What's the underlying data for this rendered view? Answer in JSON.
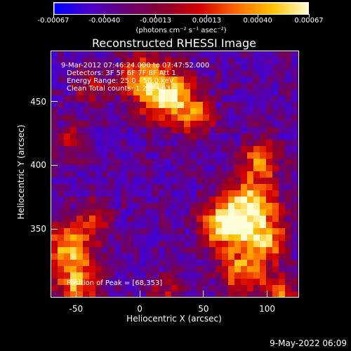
{
  "colorbar": {
    "tick_labels": [
      "-0.00067",
      "-0.00040",
      "-0.00013",
      "0.00013",
      "0.00040",
      "0.00067"
    ],
    "units": "(photons cm⁻² s⁻¹ asec⁻²)",
    "colors": [
      "#0000ff",
      "#4b00c8",
      "#6a0070",
      "#8a0030",
      "#d40000",
      "#ff6a00",
      "#ffc400",
      "#ffffd8"
    ]
  },
  "title": "Reconstructed RHESSI Image",
  "annotations": {
    "line1": "9-Mar-2012 07:46:24.000 to 07:47:52.000",
    "line2": "Detectors: 3F 5F 6F 7F 8F  Att 1",
    "line3": "Energy Range: 25.0 - 50.0 keV",
    "line4": "Clean     Total counts: 1.21E+03",
    "peak": "Position of Peak = [68,353]"
  },
  "chart_data": {
    "type": "heatmap",
    "xlabel": "Heliocentric X (arcsec)",
    "ylabel": "Heliocentric Y (arcsec)",
    "xlim": [
      -70,
      125
    ],
    "ylim": [
      296,
      490
    ],
    "xticks": [
      "-50",
      "0",
      "50",
      "100"
    ],
    "yticks": [
      "350",
      "400",
      "450"
    ],
    "value_range": [
      -0.00067,
      0.00067
    ],
    "peak_position": [
      68,
      353
    ],
    "hot_regions": [
      {
        "x": 22,
        "y": 455,
        "sigma": 16,
        "amp": 0.85
      },
      {
        "x": 0,
        "y": 470,
        "sigma": 12,
        "amp": 0.6
      },
      {
        "x": 45,
        "y": 438,
        "sigma": 10,
        "amp": 0.55
      },
      {
        "x": 68,
        "y": 353,
        "sigma": 14,
        "amp": 1.0
      },
      {
        "x": 90,
        "y": 370,
        "sigma": 14,
        "amp": 0.8
      },
      {
        "x": 100,
        "y": 340,
        "sigma": 12,
        "amp": 0.75
      },
      {
        "x": 80,
        "y": 315,
        "sigma": 12,
        "amp": 0.7
      },
      {
        "x": 95,
        "y": 405,
        "sigma": 12,
        "amp": 0.6
      },
      {
        "x": -55,
        "y": 335,
        "sigma": 14,
        "amp": 0.75
      },
      {
        "x": -50,
        "y": 305,
        "sigma": 12,
        "amp": 0.7
      },
      {
        "x": -35,
        "y": 360,
        "sigma": 10,
        "amp": 0.45
      },
      {
        "x": -55,
        "y": 420,
        "sigma": 10,
        "amp": 0.35
      },
      {
        "x": -40,
        "y": 460,
        "sigma": 10,
        "amp": 0.4
      },
      {
        "x": 20,
        "y": 300,
        "sigma": 10,
        "amp": 0.35
      },
      {
        "x": 110,
        "y": 300,
        "sigma": 10,
        "amp": 0.6
      }
    ]
  },
  "datestamp": "9-May-2022 06:09"
}
